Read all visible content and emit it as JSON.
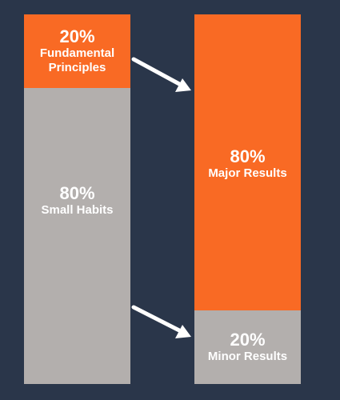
{
  "left_column": {
    "top": {
      "percent": "20%",
      "label_line1": "Fundamental",
      "label_line2": "Principles"
    },
    "bottom": {
      "percent": "80%",
      "label": "Small Habits"
    }
  },
  "right_column": {
    "top": {
      "percent": "80%",
      "label": "Major Results"
    },
    "bottom": {
      "percent": "20%",
      "label": "Minor Results"
    }
  },
  "colors": {
    "background": "#2a364a",
    "accent": "#f96a24",
    "neutral": "#b3afad",
    "text": "#ffffff"
  }
}
